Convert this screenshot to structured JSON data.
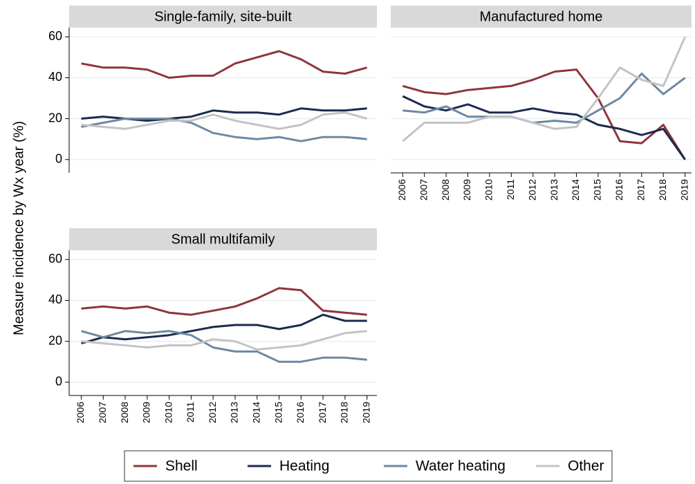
{
  "chart_data": [
    {
      "type": "line",
      "title": "Single-family, site-built",
      "ylabel": "Measure incidence by Wx year (%)",
      "legend": "bottom",
      "x": [
        2006,
        2007,
        2008,
        2009,
        2010,
        2011,
        2012,
        2013,
        2014,
        2015,
        2016,
        2017,
        2018,
        2019
      ],
      "series": [
        {
          "name": "Shell",
          "color": "#8f343c",
          "values": [
            47,
            45,
            45,
            44,
            40,
            41,
            41,
            47,
            50,
            53,
            49,
            43,
            42,
            45
          ]
        },
        {
          "name": "Heating",
          "color": "#1b2a4e",
          "values": [
            20,
            21,
            20,
            19,
            20,
            21,
            24,
            23,
            23,
            22,
            25,
            24,
            24,
            25
          ]
        },
        {
          "name": "Water heating",
          "color": "#6d88a2",
          "values": [
            16,
            18,
            20,
            20,
            20,
            18,
            13,
            11,
            10,
            11,
            9,
            11,
            11,
            10
          ]
        },
        {
          "name": "Other",
          "color": "#c3c3c3",
          "values": [
            17,
            16,
            15,
            17,
            19,
            19,
            22,
            19,
            17,
            15,
            17,
            22,
            23,
            20
          ]
        }
      ],
      "xlim": [
        2005.45,
        2019.45
      ],
      "ylim": [
        -6.5,
        64.5
      ],
      "yticks": [
        0,
        20,
        40,
        60
      ],
      "xticks": [
        2006,
        2007,
        2008,
        2009,
        2010,
        2011,
        2012,
        2013,
        2014,
        2015,
        2016,
        2017,
        2018,
        2019
      ],
      "grid": true,
      "show_xticklabels": false,
      "show_yticklabels": true
    },
    {
      "type": "line",
      "title": "Manufactured home",
      "x": [
        2006,
        2007,
        2008,
        2009,
        2010,
        2011,
        2012,
        2013,
        2014,
        2015,
        2016,
        2017,
        2018,
        2019
      ],
      "series": [
        {
          "name": "Shell",
          "color": "#8f343c",
          "values": [
            36,
            33,
            32,
            34,
            35,
            36,
            39,
            43,
            44,
            30,
            9,
            8,
            17,
            0
          ]
        },
        {
          "name": "Heating",
          "color": "#1b2a4e",
          "values": [
            31,
            26,
            24,
            27,
            23,
            23,
            25,
            23,
            22,
            17,
            15,
            12,
            15,
            0
          ]
        },
        {
          "name": "Water heating",
          "color": "#6d88a2",
          "values": [
            24,
            23,
            26,
            21,
            21,
            21,
            18,
            19,
            18,
            24,
            30,
            42,
            32,
            40
          ]
        },
        {
          "name": "Other",
          "color": "#c3c3c3",
          "values": [
            9,
            18,
            18,
            18,
            21,
            21,
            18,
            15,
            16,
            30,
            45,
            39,
            36,
            60
          ]
        }
      ],
      "xlim": [
        2005.45,
        2019.3
      ],
      "ylim": [
        -6.5,
        64.5
      ],
      "yticks": [
        0,
        20,
        40,
        60
      ],
      "xticks": [
        2006,
        2007,
        2008,
        2009,
        2010,
        2011,
        2012,
        2013,
        2014,
        2015,
        2016,
        2017,
        2018,
        2019
      ],
      "grid": true,
      "show_xticklabels": true,
      "show_yticklabels": false
    },
    {
      "type": "line",
      "title": "Small multifamily",
      "x": [
        2006,
        2007,
        2008,
        2009,
        2010,
        2011,
        2012,
        2013,
        2014,
        2015,
        2016,
        2017,
        2018,
        2019
      ],
      "series": [
        {
          "name": "Shell",
          "color": "#8f343c",
          "values": [
            36,
            37,
            36,
            37,
            34,
            33,
            35,
            37,
            41,
            46,
            45,
            35,
            34,
            33
          ]
        },
        {
          "name": "Heating",
          "color": "#1b2a4e",
          "values": [
            19,
            22,
            21,
            22,
            23,
            25,
            27,
            28,
            28,
            26,
            28,
            33,
            30,
            30
          ]
        },
        {
          "name": "Water heating",
          "color": "#6d88a2",
          "values": [
            25,
            22,
            25,
            24,
            25,
            23,
            17,
            15,
            15,
            10,
            10,
            12,
            12,
            11
          ]
        },
        {
          "name": "Other",
          "color": "#c3c3c3",
          "values": [
            20,
            19,
            18,
            17,
            18,
            18,
            21,
            20,
            16,
            17,
            18,
            21,
            24,
            25
          ]
        }
      ],
      "xlim": [
        2005.45,
        2019.45
      ],
      "ylim": [
        -6.5,
        64.5
      ],
      "yticks": [
        0,
        20,
        40,
        60
      ],
      "xticks": [
        2006,
        2007,
        2008,
        2009,
        2010,
        2011,
        2012,
        2013,
        2014,
        2015,
        2016,
        2017,
        2018,
        2019
      ],
      "grid": true,
      "show_xticklabels": true,
      "show_yticklabels": true
    }
  ]
}
